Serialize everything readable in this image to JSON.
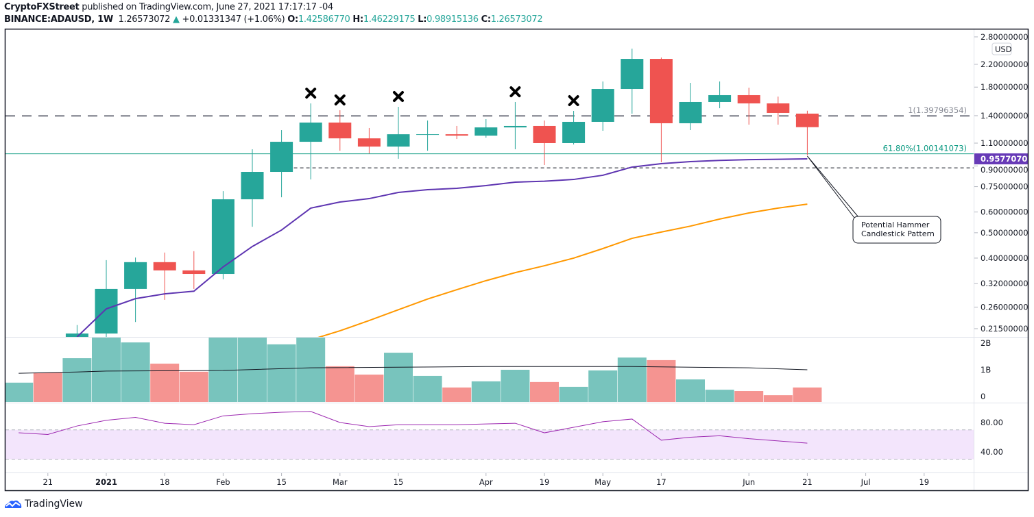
{
  "header": {
    "publisher": "CryptoFXStreet",
    "published_text": "published on TradingView.com, June 27, 2021 17:17:17 -04",
    "symbol": "BINANCE:ADAUSD, 1W",
    "last": "1.26573072",
    "change": "+0.01331347 (+1.06%)",
    "o_label": "O:",
    "o": "1.42586770",
    "h_label": "H:",
    "h": "1.46229175",
    "l_label": "L:",
    "l": "0.98915136",
    "c_label": "C:",
    "c": "1.26573072"
  },
  "footer": {
    "brand": "TradingView"
  },
  "colors": {
    "up": "#26a69a",
    "down": "#ef5350",
    "vol_up": "#78c4bd",
    "vol_down": "#f59491",
    "ma_short": "#5e35b1",
    "ma_long": "#ff9800",
    "rsi": "#9c27b0",
    "fib": "#089981",
    "price_tag": "#673ab7"
  },
  "chart_data": {
    "type": "candlestick",
    "symbol": "ADAUSD",
    "interval": "1W",
    "currency": "USD",
    "y_scale": "log",
    "ylim": [
      0.2,
      2.9
    ],
    "price_ticks": [
      "2.80000000",
      "2.20000000",
      "1.80000000",
      "1.40000000",
      "1.10000000",
      "0.90000000",
      "0.75000000",
      "0.60000000",
      "0.50000000",
      "0.40000000",
      "0.32000000",
      "0.26000000",
      "0.21500000"
    ],
    "time_ticks": [
      {
        "date": "2020-12-21",
        "label": "21"
      },
      {
        "date": "2021-01-04",
        "label": "2021"
      },
      {
        "date": "2021-01-18",
        "label": "18"
      },
      {
        "date": "2021-02-01",
        "label": "Feb"
      },
      {
        "date": "2021-02-15",
        "label": "15"
      },
      {
        "date": "2021-03-01",
        "label": "Mar"
      },
      {
        "date": "2021-03-15",
        "label": "15"
      },
      {
        "date": "2021-04-05",
        "label": "Apr"
      },
      {
        "date": "2021-04-19",
        "label": "19"
      },
      {
        "date": "2021-05-03",
        "label": "May"
      },
      {
        "date": "2021-05-17",
        "label": "17"
      },
      {
        "date": "2021-06-07",
        "label": "Jun"
      },
      {
        "date": "2021-06-21",
        "label": "21"
      },
      {
        "date": "2021-07-05",
        "label": "Jul"
      },
      {
        "date": "2021-07-19",
        "label": "19"
      }
    ],
    "candles": [
      [
        "2020-12-28",
        0.18,
        0.222,
        0.17,
        0.206
      ],
      [
        "2021-01-04",
        0.206,
        0.393,
        0.196,
        0.305
      ],
      [
        "2021-01-11",
        0.305,
        0.402,
        0.228,
        0.386
      ],
      [
        "2021-01-18",
        0.386,
        0.42,
        0.277,
        0.359
      ],
      [
        "2021-01-25",
        0.359,
        0.425,
        0.305,
        0.348
      ],
      [
        "2021-02-01",
        0.348,
        0.721,
        0.332,
        0.671
      ],
      [
        "2021-02-08",
        0.671,
        1.042,
        0.527,
        0.854
      ],
      [
        "2021-02-15",
        0.854,
        1.233,
        0.683,
        1.113
      ],
      [
        "2021-02-22",
        1.113,
        1.56,
        0.799,
        1.318
      ],
      [
        "2021-03-01",
        1.318,
        1.469,
        1.029,
        1.147
      ],
      [
        "2021-03-08",
        1.147,
        1.256,
        1.005,
        1.067
      ],
      [
        "2021-03-15",
        1.067,
        1.514,
        0.958,
        1.189
      ],
      [
        "2021-03-22",
        1.182,
        1.342,
        1.029,
        1.189
      ],
      [
        "2021-03-29",
        1.189,
        1.279,
        1.14,
        1.175
      ],
      [
        "2021-04-05",
        1.175,
        1.358,
        1.154,
        1.263
      ],
      [
        "2021-04-12",
        1.263,
        1.579,
        1.042,
        1.279
      ],
      [
        "2021-04-19",
        1.279,
        1.342,
        0.907,
        1.1
      ],
      [
        "2021-04-26",
        1.1,
        1.46,
        1.087,
        1.326
      ],
      [
        "2021-05-03",
        1.326,
        1.892,
        1.226,
        1.77
      ],
      [
        "2021-05-10",
        1.77,
        2.526,
        1.425,
        2.307
      ],
      [
        "2021-05-17",
        2.307,
        2.335,
        0.93,
        1.31
      ],
      [
        "2021-05-24",
        1.31,
        1.869,
        1.233,
        1.579
      ],
      [
        "2021-05-31",
        1.579,
        1.892,
        1.495,
        1.677
      ],
      [
        "2021-06-07",
        1.677,
        1.792,
        1.294,
        1.56
      ],
      [
        "2021-06-14",
        1.56,
        1.657,
        1.294,
        1.434
      ],
      [
        "2021-06-21",
        1.4258677,
        1.46229175,
        0.98915136,
        1.26573072
      ]
    ],
    "ma_short": [
      [
        "2020-12-28",
        0.2
      ],
      [
        "2021-01-04",
        0.256
      ],
      [
        "2021-01-11",
        0.28
      ],
      [
        "2021-01-18",
        0.292
      ],
      [
        "2021-01-25",
        0.299
      ],
      [
        "2021-02-01",
        0.37
      ],
      [
        "2021-02-08",
        0.443
      ],
      [
        "2021-02-15",
        0.512
      ],
      [
        "2021-02-22",
        0.621
      ],
      [
        "2021-03-01",
        0.655
      ],
      [
        "2021-03-08",
        0.675
      ],
      [
        "2021-03-15",
        0.713
      ],
      [
        "2021-03-22",
        0.73
      ],
      [
        "2021-03-29",
        0.739
      ],
      [
        "2021-04-05",
        0.757
      ],
      [
        "2021-04-12",
        0.78
      ],
      [
        "2021-04-19",
        0.787
      ],
      [
        "2021-04-26",
        0.799
      ],
      [
        "2021-05-03",
        0.829
      ],
      [
        "2021-05-10",
        0.891
      ],
      [
        "2021-05-17",
        0.918
      ],
      [
        "2021-05-24",
        0.935
      ],
      [
        "2021-05-31",
        0.9445
      ],
      [
        "2021-06-07",
        0.951
      ],
      [
        "2021-06-14",
        0.954
      ],
      [
        "2021-06-21",
        0.95770709
      ]
    ],
    "ma_long": [
      [
        "2021-02-22",
        0.195
      ],
      [
        "2021-03-01",
        0.211
      ],
      [
        "2021-03-08",
        0.231
      ],
      [
        "2021-03-15",
        0.254
      ],
      [
        "2021-03-22",
        0.279
      ],
      [
        "2021-03-29",
        0.303
      ],
      [
        "2021-04-05",
        0.328
      ],
      [
        "2021-04-12",
        0.352
      ],
      [
        "2021-04-19",
        0.374
      ],
      [
        "2021-04-26",
        0.4
      ],
      [
        "2021-05-03",
        0.435
      ],
      [
        "2021-05-10",
        0.476
      ],
      [
        "2021-05-17",
        0.503
      ],
      [
        "2021-05-24",
        0.53
      ],
      [
        "2021-05-31",
        0.564
      ],
      [
        "2021-06-07",
        0.595
      ],
      [
        "2021-06-14",
        0.621
      ],
      [
        "2021-06-21",
        0.643
      ]
    ],
    "last_ma_label": "0.95770709",
    "levels": [
      {
        "price": 1.39796354,
        "label": "1(1.39796354)",
        "style": "dashed-gray"
      },
      {
        "price": 1.00141073,
        "label": "61.80%(1.00141073)",
        "style": "solid-fib"
      },
      {
        "price": 0.885,
        "label": "",
        "style": "dashed-black",
        "from": "2021-02-15"
      }
    ],
    "x_marks": [
      "2021-02-22",
      "2021-03-01",
      "2021-03-15",
      "2021-04-12",
      "2021-04-26"
    ],
    "annotation": {
      "date": "2021-06-21",
      "price": 0.9577,
      "line1": "Potential Hammer",
      "line2": "Candlestick Pattern"
    },
    "volume": {
      "ylim": [
        0,
        2
      ],
      "ticks": [
        "2B",
        "1B",
        "0"
      ],
      "bars": [
        [
          "2020-12-14",
          0.6,
          "up"
        ],
        [
          "2020-12-21",
          0.91,
          "down"
        ],
        [
          "2020-12-28",
          1.36,
          "up"
        ],
        [
          "2021-01-04",
          2.3,
          "up"
        ],
        [
          "2021-01-11",
          1.85,
          "up"
        ],
        [
          "2021-01-18",
          1.19,
          "down"
        ],
        [
          "2021-01-25",
          0.94,
          "down"
        ],
        [
          "2021-02-01",
          2.5,
          "up"
        ],
        [
          "2021-02-08",
          2.4,
          "up"
        ],
        [
          "2021-02-15",
          1.79,
          "up"
        ],
        [
          "2021-02-22",
          2.2,
          "up"
        ],
        [
          "2021-03-01",
          1.11,
          "down"
        ],
        [
          "2021-03-08",
          0.85,
          "down"
        ],
        [
          "2021-03-15",
          1.53,
          "up"
        ],
        [
          "2021-03-22",
          0.81,
          "up"
        ],
        [
          "2021-03-29",
          0.45,
          "down"
        ],
        [
          "2021-04-05",
          0.64,
          "up"
        ],
        [
          "2021-04-12",
          1.0,
          "up"
        ],
        [
          "2021-04-19",
          0.62,
          "down"
        ],
        [
          "2021-04-26",
          0.47,
          "up"
        ],
        [
          "2021-05-03",
          0.98,
          "up"
        ],
        [
          "2021-05-10",
          1.38,
          "up"
        ],
        [
          "2021-05-17",
          1.3,
          "down"
        ],
        [
          "2021-05-24",
          0.7,
          "up"
        ],
        [
          "2021-05-31",
          0.38,
          "up"
        ],
        [
          "2021-06-07",
          0.34,
          "down"
        ],
        [
          "2021-06-14",
          0.21,
          "down"
        ],
        [
          "2021-06-21",
          0.45,
          "down"
        ]
      ],
      "ma": [
        [
          "2020-12-14",
          0.89
        ],
        [
          "2020-12-28",
          0.93
        ],
        [
          "2021-01-04",
          0.96
        ],
        [
          "2021-02-01",
          0.98
        ],
        [
          "2021-02-22",
          1.06
        ],
        [
          "2021-04-05",
          1.1
        ],
        [
          "2021-05-10",
          1.1
        ],
        [
          "2021-06-07",
          1.06
        ],
        [
          "2021-06-21",
          1.0
        ]
      ]
    },
    "rsi": {
      "ylim": [
        20,
        100
      ],
      "ticks": [
        "80.00",
        "40.00"
      ],
      "band": [
        30,
        70
      ],
      "values": [
        [
          "2020-12-14",
          66
        ],
        [
          "2020-12-21",
          63.7
        ],
        [
          "2020-12-28",
          75.3
        ],
        [
          "2021-01-04",
          83
        ],
        [
          "2021-01-11",
          87
        ],
        [
          "2021-01-18",
          79
        ],
        [
          "2021-01-25",
          77
        ],
        [
          "2021-02-01",
          89
        ],
        [
          "2021-02-08",
          92
        ],
        [
          "2021-02-15",
          94
        ],
        [
          "2021-02-22",
          95
        ],
        [
          "2021-03-01",
          80
        ],
        [
          "2021-03-08",
          74.4
        ],
        [
          "2021-03-15",
          77
        ],
        [
          "2021-03-22",
          77
        ],
        [
          "2021-03-29",
          77
        ],
        [
          "2021-04-05",
          78
        ],
        [
          "2021-04-12",
          79
        ],
        [
          "2021-04-19",
          66
        ],
        [
          "2021-04-26",
          73.5
        ],
        [
          "2021-05-03",
          81
        ],
        [
          "2021-05-10",
          84.7
        ],
        [
          "2021-05-17",
          56
        ],
        [
          "2021-05-24",
          60
        ],
        [
          "2021-05-31",
          62
        ],
        [
          "2021-06-07",
          58
        ],
        [
          "2021-06-14",
          55
        ],
        [
          "2021-06-21",
          52
        ]
      ]
    }
  }
}
